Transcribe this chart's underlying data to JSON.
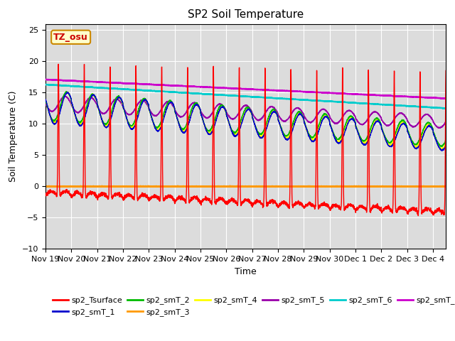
{
  "title": "SP2 Soil Temperature",
  "ylabel": "Soil Temperature (C)",
  "xlabel": "Time",
  "ylim": [
    -10,
    26
  ],
  "yticks": [
    -10,
    -5,
    0,
    5,
    10,
    15,
    20,
    25
  ],
  "xtick_labels": [
    "Nov 19",
    "Nov 20",
    "Nov 21",
    "Nov 22",
    "Nov 23",
    "Nov 24",
    "Nov 25",
    "Nov 26",
    "Nov 27",
    "Nov 28",
    "Nov 29",
    "Nov 30",
    "Dec 1",
    "Dec 2",
    "Dec 3",
    "Dec 4"
  ],
  "bg_color": "#dcdcdc",
  "face_color": "#ffffff",
  "tz_label": "TZ_osu",
  "series_colors": {
    "sp2_Tsurface": "#ff0000",
    "sp2_smT_1": "#0000cc",
    "sp2_smT_2": "#00bb00",
    "sp2_smT_3": "#ff9900",
    "sp2_smT_4": "#ffff00",
    "sp2_smT_5": "#9900aa",
    "sp2_smT_6": "#00cccc",
    "sp2_smT_7": "#cc00cc"
  }
}
